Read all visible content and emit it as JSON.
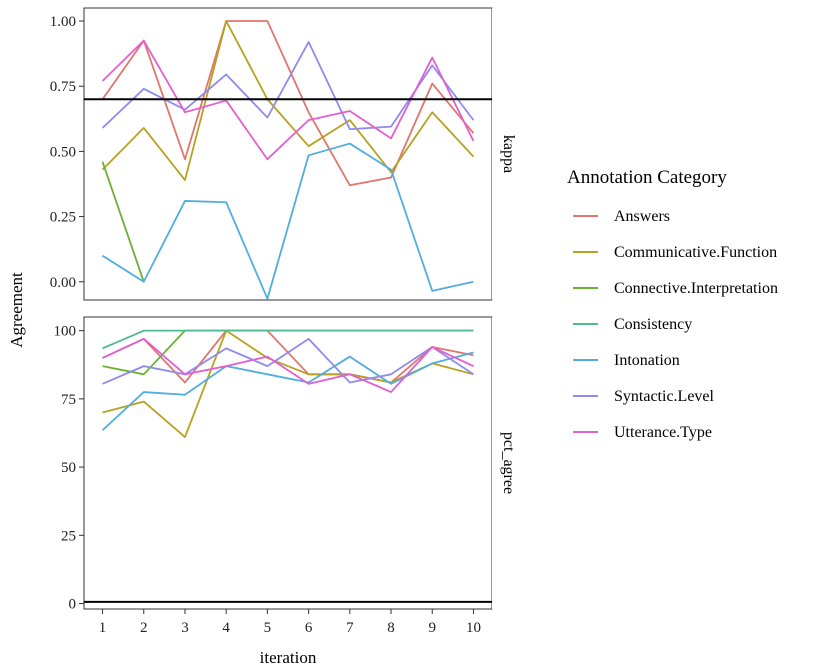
{
  "chart_data": {
    "type": "line",
    "xlabel": "iteration",
    "ylabel": "Agreement",
    "x": [
      1,
      2,
      3,
      4,
      5,
      6,
      7,
      8,
      9,
      10
    ],
    "legend": {
      "title": "Annotation Category",
      "placement": "right"
    },
    "series_info": [
      {
        "name": "Answers",
        "color": "#E0766D"
      },
      {
        "name": "Communicative.Function",
        "color": "#B8A021"
      },
      {
        "name": "Connective.Interpretation",
        "color": "#6BB033"
      },
      {
        "name": "Consistency",
        "color": "#4DBB8E"
      },
      {
        "name": "Intonation",
        "color": "#51ADDD"
      },
      {
        "name": "Syntactic.Level",
        "color": "#8E8BEF"
      },
      {
        "name": "Utterance.Type",
        "color": "#E25FD0"
      }
    ],
    "facets": [
      {
        "strip": "kappa",
        "ylim": [
          -0.07,
          1.05
        ],
        "yticks": [
          0,
          0.25,
          0.5,
          0.75,
          1
        ],
        "ytick_labels": [
          "0.00",
          "0.25",
          "0.50",
          "0.75",
          "1.00"
        ],
        "hline": 0.7,
        "series": [
          {
            "name": "Answers",
            "values": [
              0.7,
              0.925,
              0.47,
              1.0,
              1.0,
              0.65,
              0.37,
              0.4,
              0.76,
              0.57
            ]
          },
          {
            "name": "Communicative.Function",
            "values": [
              0.43,
              0.59,
              0.39,
              1.0,
              0.7,
              0.52,
              0.62,
              0.42,
              0.65,
              0.48
            ]
          },
          {
            "name": "Connective.Interpretation",
            "values": [
              0.46,
              0.0,
              null,
              null,
              null,
              null,
              null,
              null,
              null,
              null
            ]
          },
          {
            "name": "Intonation",
            "values": [
              0.1,
              0.0,
              0.31,
              0.305,
              -0.065,
              0.485,
              0.53,
              0.43,
              -0.035,
              0.0
            ]
          },
          {
            "name": "Syntactic.Level",
            "values": [
              0.59,
              0.74,
              0.66,
              0.795,
              0.63,
              0.92,
              0.585,
              0.595,
              0.83,
              0.62
            ]
          },
          {
            "name": "Utterance.Type",
            "values": [
              0.77,
              0.925,
              0.65,
              0.695,
              0.47,
              0.62,
              0.655,
              0.55,
              0.86,
              0.54
            ]
          }
        ]
      },
      {
        "strip": "pct_agree",
        "ylim": [
          -2,
          105
        ],
        "yticks": [
          0,
          25,
          50,
          75,
          100
        ],
        "ytick_labels": [
          "0",
          "25",
          "50",
          "75",
          "100"
        ],
        "hline": 0.6,
        "series": [
          {
            "name": "Answers",
            "values": [
              90,
              97,
              81,
              100,
              100,
              84,
              84,
              81,
              94,
              91
            ]
          },
          {
            "name": "Communicative.Function",
            "values": [
              70,
              74,
              61,
              100,
              90,
              84,
              84,
              81,
              88,
              84
            ]
          },
          {
            "name": "Connective.Interpretation",
            "values": [
              87,
              84,
              100,
              100,
              100,
              100,
              100,
              100,
              100,
              100
            ]
          },
          {
            "name": "Consistency",
            "values": [
              93.5,
              100,
              100,
              100,
              100,
              100,
              100,
              100,
              100,
              100
            ]
          },
          {
            "name": "Intonation",
            "values": [
              63.5,
              77.5,
              76.5,
              87,
              84,
              81,
              90.5,
              80.5,
              88,
              92
            ]
          },
          {
            "name": "Syntactic.Level",
            "values": [
              80.5,
              87,
              84,
              93.5,
              87,
              97,
              81,
              84,
              94,
              84
            ]
          },
          {
            "name": "Utterance.Type",
            "values": [
              90,
              97,
              84,
              87,
              90.5,
              80.5,
              84,
              77.5,
              94,
              87
            ]
          }
        ]
      }
    ]
  }
}
